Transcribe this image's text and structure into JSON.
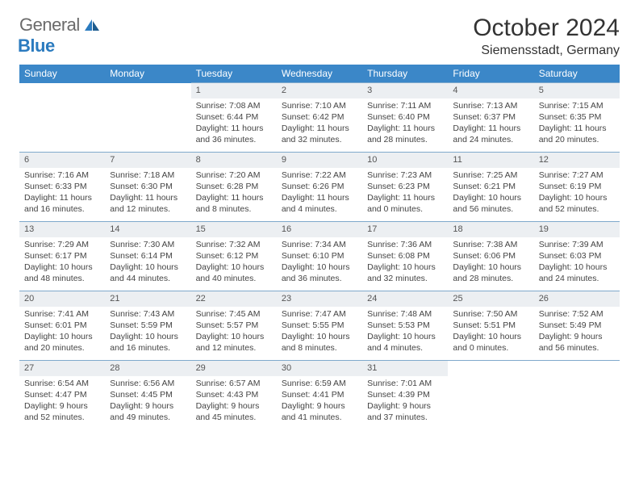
{
  "logo": {
    "text1": "General",
    "text2": "Blue"
  },
  "title": "October 2024",
  "location": "Siemensstadt, Germany",
  "colors": {
    "header_bg": "#3b87c8",
    "header_text": "#ffffff",
    "daynum_bg": "#eceff2",
    "border": "#7fa9cc",
    "logo_gray": "#6b6b6b",
    "logo_blue": "#2b7bbf"
  },
  "weekdays": [
    "Sunday",
    "Monday",
    "Tuesday",
    "Wednesday",
    "Thursday",
    "Friday",
    "Saturday"
  ],
  "weeks": [
    [
      {
        "empty": true
      },
      {
        "empty": true
      },
      {
        "day": "1",
        "sunrise": "Sunrise: 7:08 AM",
        "sunset": "Sunset: 6:44 PM",
        "daylight": "Daylight: 11 hours and 36 minutes."
      },
      {
        "day": "2",
        "sunrise": "Sunrise: 7:10 AM",
        "sunset": "Sunset: 6:42 PM",
        "daylight": "Daylight: 11 hours and 32 minutes."
      },
      {
        "day": "3",
        "sunrise": "Sunrise: 7:11 AM",
        "sunset": "Sunset: 6:40 PM",
        "daylight": "Daylight: 11 hours and 28 minutes."
      },
      {
        "day": "4",
        "sunrise": "Sunrise: 7:13 AM",
        "sunset": "Sunset: 6:37 PM",
        "daylight": "Daylight: 11 hours and 24 minutes."
      },
      {
        "day": "5",
        "sunrise": "Sunrise: 7:15 AM",
        "sunset": "Sunset: 6:35 PM",
        "daylight": "Daylight: 11 hours and 20 minutes."
      }
    ],
    [
      {
        "day": "6",
        "sunrise": "Sunrise: 7:16 AM",
        "sunset": "Sunset: 6:33 PM",
        "daylight": "Daylight: 11 hours and 16 minutes."
      },
      {
        "day": "7",
        "sunrise": "Sunrise: 7:18 AM",
        "sunset": "Sunset: 6:30 PM",
        "daylight": "Daylight: 11 hours and 12 minutes."
      },
      {
        "day": "8",
        "sunrise": "Sunrise: 7:20 AM",
        "sunset": "Sunset: 6:28 PM",
        "daylight": "Daylight: 11 hours and 8 minutes."
      },
      {
        "day": "9",
        "sunrise": "Sunrise: 7:22 AM",
        "sunset": "Sunset: 6:26 PM",
        "daylight": "Daylight: 11 hours and 4 minutes."
      },
      {
        "day": "10",
        "sunrise": "Sunrise: 7:23 AM",
        "sunset": "Sunset: 6:23 PM",
        "daylight": "Daylight: 11 hours and 0 minutes."
      },
      {
        "day": "11",
        "sunrise": "Sunrise: 7:25 AM",
        "sunset": "Sunset: 6:21 PM",
        "daylight": "Daylight: 10 hours and 56 minutes."
      },
      {
        "day": "12",
        "sunrise": "Sunrise: 7:27 AM",
        "sunset": "Sunset: 6:19 PM",
        "daylight": "Daylight: 10 hours and 52 minutes."
      }
    ],
    [
      {
        "day": "13",
        "sunrise": "Sunrise: 7:29 AM",
        "sunset": "Sunset: 6:17 PM",
        "daylight": "Daylight: 10 hours and 48 minutes."
      },
      {
        "day": "14",
        "sunrise": "Sunrise: 7:30 AM",
        "sunset": "Sunset: 6:14 PM",
        "daylight": "Daylight: 10 hours and 44 minutes."
      },
      {
        "day": "15",
        "sunrise": "Sunrise: 7:32 AM",
        "sunset": "Sunset: 6:12 PM",
        "daylight": "Daylight: 10 hours and 40 minutes."
      },
      {
        "day": "16",
        "sunrise": "Sunrise: 7:34 AM",
        "sunset": "Sunset: 6:10 PM",
        "daylight": "Daylight: 10 hours and 36 minutes."
      },
      {
        "day": "17",
        "sunrise": "Sunrise: 7:36 AM",
        "sunset": "Sunset: 6:08 PM",
        "daylight": "Daylight: 10 hours and 32 minutes."
      },
      {
        "day": "18",
        "sunrise": "Sunrise: 7:38 AM",
        "sunset": "Sunset: 6:06 PM",
        "daylight": "Daylight: 10 hours and 28 minutes."
      },
      {
        "day": "19",
        "sunrise": "Sunrise: 7:39 AM",
        "sunset": "Sunset: 6:03 PM",
        "daylight": "Daylight: 10 hours and 24 minutes."
      }
    ],
    [
      {
        "day": "20",
        "sunrise": "Sunrise: 7:41 AM",
        "sunset": "Sunset: 6:01 PM",
        "daylight": "Daylight: 10 hours and 20 minutes."
      },
      {
        "day": "21",
        "sunrise": "Sunrise: 7:43 AM",
        "sunset": "Sunset: 5:59 PM",
        "daylight": "Daylight: 10 hours and 16 minutes."
      },
      {
        "day": "22",
        "sunrise": "Sunrise: 7:45 AM",
        "sunset": "Sunset: 5:57 PM",
        "daylight": "Daylight: 10 hours and 12 minutes."
      },
      {
        "day": "23",
        "sunrise": "Sunrise: 7:47 AM",
        "sunset": "Sunset: 5:55 PM",
        "daylight": "Daylight: 10 hours and 8 minutes."
      },
      {
        "day": "24",
        "sunrise": "Sunrise: 7:48 AM",
        "sunset": "Sunset: 5:53 PM",
        "daylight": "Daylight: 10 hours and 4 minutes."
      },
      {
        "day": "25",
        "sunrise": "Sunrise: 7:50 AM",
        "sunset": "Sunset: 5:51 PM",
        "daylight": "Daylight: 10 hours and 0 minutes."
      },
      {
        "day": "26",
        "sunrise": "Sunrise: 7:52 AM",
        "sunset": "Sunset: 5:49 PM",
        "daylight": "Daylight: 9 hours and 56 minutes."
      }
    ],
    [
      {
        "day": "27",
        "sunrise": "Sunrise: 6:54 AM",
        "sunset": "Sunset: 4:47 PM",
        "daylight": "Daylight: 9 hours and 52 minutes."
      },
      {
        "day": "28",
        "sunrise": "Sunrise: 6:56 AM",
        "sunset": "Sunset: 4:45 PM",
        "daylight": "Daylight: 9 hours and 49 minutes."
      },
      {
        "day": "29",
        "sunrise": "Sunrise: 6:57 AM",
        "sunset": "Sunset: 4:43 PM",
        "daylight": "Daylight: 9 hours and 45 minutes."
      },
      {
        "day": "30",
        "sunrise": "Sunrise: 6:59 AM",
        "sunset": "Sunset: 4:41 PM",
        "daylight": "Daylight: 9 hours and 41 minutes."
      },
      {
        "day": "31",
        "sunrise": "Sunrise: 7:01 AM",
        "sunset": "Sunset: 4:39 PM",
        "daylight": "Daylight: 9 hours and 37 minutes."
      },
      {
        "empty": true,
        "bottom": true
      },
      {
        "empty": true,
        "bottom": true
      }
    ]
  ]
}
